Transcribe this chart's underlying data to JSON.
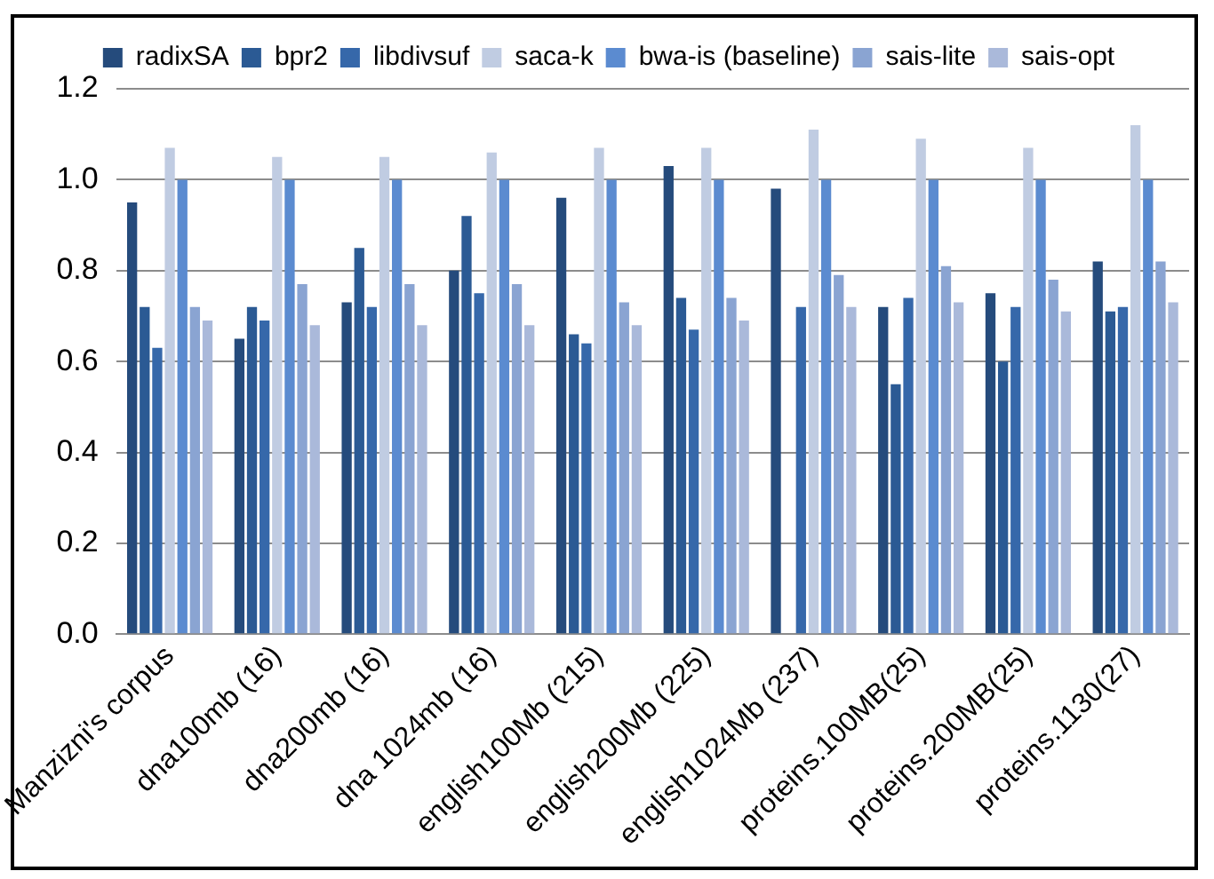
{
  "chart_data": {
    "type": "bar",
    "categories": [
      "Manzizni's corpus",
      "dna100mb (16)",
      "dna200mb (16)",
      "dna 1024mb (16)",
      "english100Mb (215)",
      "english200Mb (225)",
      "english1024Mb (237)",
      "proteins.100MB(25)",
      "proteins.200MB(25)",
      "proteins.1130(27)"
    ],
    "series": [
      {
        "name": "radixSA",
        "color": "#254b7c",
        "values": [
          0.95,
          0.65,
          0.73,
          0.8,
          0.96,
          1.03,
          0.98,
          0.72,
          0.75,
          0.82
        ]
      },
      {
        "name": "bpr2",
        "color": "#2b5a94",
        "values": [
          0.72,
          0.72,
          0.85,
          0.92,
          0.66,
          0.74,
          null,
          0.55,
          0.6,
          0.71
        ]
      },
      {
        "name": "libdivsuf",
        "color": "#3668aa",
        "values": [
          0.63,
          0.69,
          0.72,
          0.75,
          0.64,
          0.67,
          0.72,
          0.74,
          0.72,
          0.72
        ]
      },
      {
        "name": "saca-k",
        "color": "#c0cce2",
        "values": [
          1.07,
          1.05,
          1.05,
          1.06,
          1.07,
          1.07,
          1.11,
          1.09,
          1.07,
          1.12
        ]
      },
      {
        "name": "bwa-is (baseline)",
        "color": "#5b8bd0",
        "values": [
          1.0,
          1.0,
          1.0,
          1.0,
          1.0,
          1.0,
          1.0,
          1.0,
          1.0,
          1.0
        ]
      },
      {
        "name": "sais-lite",
        "color": "#8aa4d2",
        "values": [
          0.72,
          0.77,
          0.77,
          0.77,
          0.73,
          0.74,
          0.79,
          0.81,
          0.78,
          0.82
        ]
      },
      {
        "name": "sais-opt",
        "color": "#aab9da",
        "values": [
          0.69,
          0.68,
          0.68,
          0.68,
          0.68,
          0.69,
          0.72,
          0.73,
          0.71,
          0.73
        ]
      }
    ],
    "ylim": [
      0,
      1.2
    ],
    "yticks": [
      {
        "value": 0,
        "label": "0.0"
      },
      {
        "value": 0.2,
        "label": "0.2"
      },
      {
        "value": 0.4,
        "label": "0.4"
      },
      {
        "value": 0.6,
        "label": "0.6"
      },
      {
        "value": 0.8,
        "label": "0.8"
      },
      {
        "value": 1.0,
        "label": "1.0"
      },
      {
        "value": 1.2,
        "label": "1.2"
      }
    ],
    "grid": "y",
    "legend": "top"
  }
}
